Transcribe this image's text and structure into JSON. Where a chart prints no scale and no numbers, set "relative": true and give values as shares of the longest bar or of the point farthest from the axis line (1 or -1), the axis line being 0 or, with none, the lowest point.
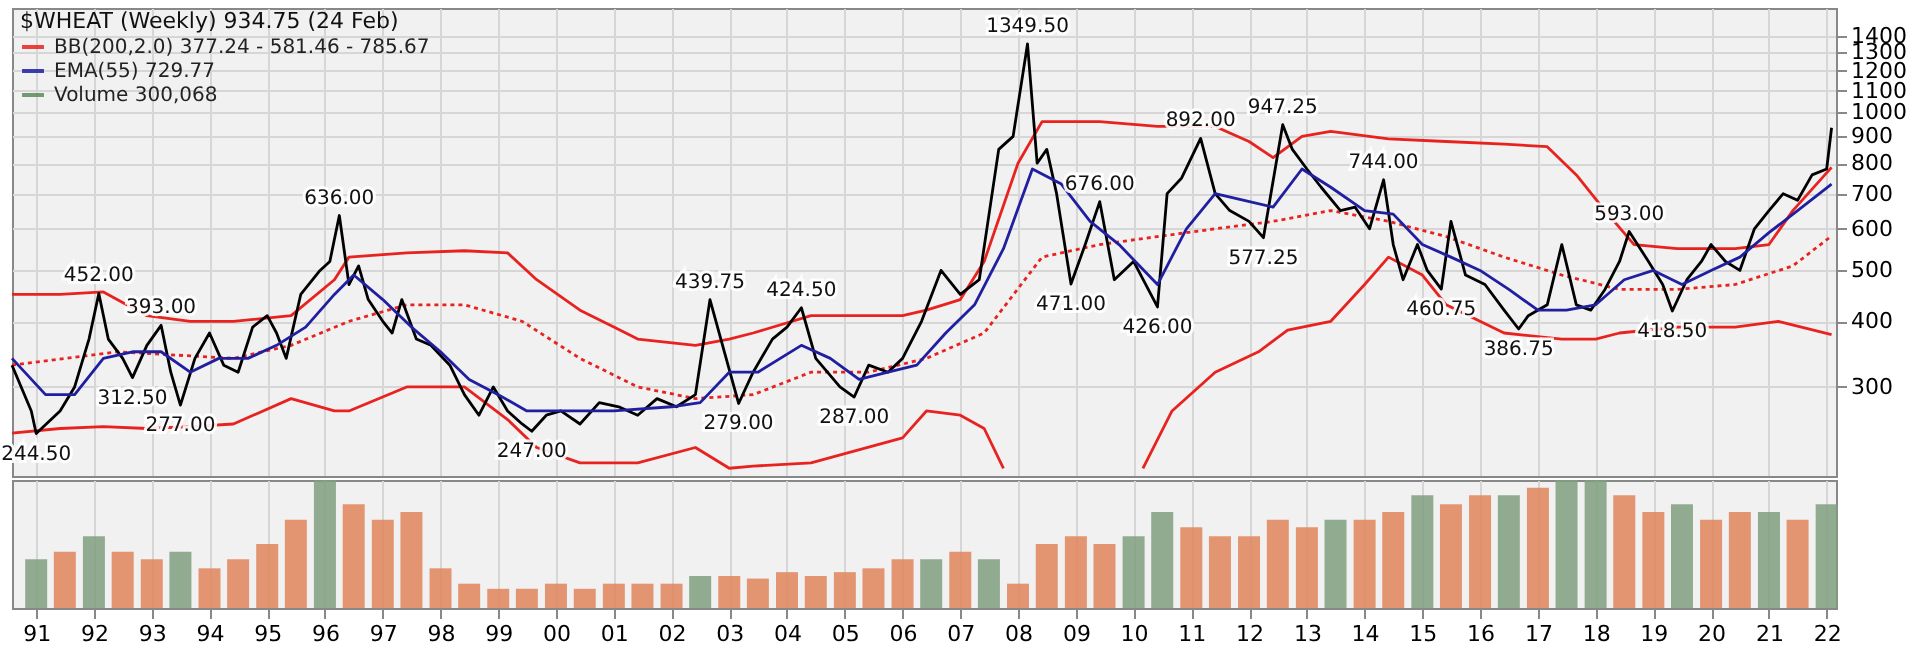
{
  "chart_data": [
    {
      "type": "line",
      "title": "$WHEAT (Weekly) 934.75 (24 Feb)",
      "xlim": [
        "1990-08",
        "2022-03"
      ],
      "ylim": [
        203,
        1580
      ],
      "log": true,
      "grid": true,
      "legend": "top left",
      "tick_labels": "y",
      "xticks": [
        {
          "value": "1991",
          "label": null
        },
        {
          "value": "1992",
          "label": null
        },
        {
          "value": "1993",
          "label": null
        },
        {
          "value": "1994",
          "label": null
        },
        {
          "value": "1995",
          "label": null
        },
        {
          "value": "1996",
          "label": null
        },
        {
          "value": "1997",
          "label": null
        },
        {
          "value": "1998",
          "label": null
        },
        {
          "value": "1999",
          "label": null
        },
        {
          "value": "2000",
          "label": null
        },
        {
          "value": "2001",
          "label": null
        },
        {
          "value": "2002",
          "label": null
        },
        {
          "value": "2003",
          "label": null
        },
        {
          "value": "2004",
          "label": null
        },
        {
          "value": "2005",
          "label": null
        },
        {
          "value": "2006",
          "label": null
        },
        {
          "value": "2007",
          "label": null
        },
        {
          "value": "2008",
          "label": null
        },
        {
          "value": "2009",
          "label": null
        },
        {
          "value": "2010",
          "label": null
        },
        {
          "value": "2011",
          "label": null
        },
        {
          "value": "2012",
          "label": null
        },
        {
          "value": "2013",
          "label": null
        },
        {
          "value": "2014",
          "label": null
        },
        {
          "value": "2015",
          "label": null
        },
        {
          "value": "2016",
          "label": null
        },
        {
          "value": "2017",
          "label": null
        },
        {
          "value": "2018",
          "label": null
        },
        {
          "value": "2019",
          "label": null
        },
        {
          "value": "2020",
          "label": null
        },
        {
          "value": "2021",
          "label": null
        },
        {
          "value": "2022",
          "label": null
        }
      ],
      "yticks": [
        300,
        400,
        500,
        600,
        700,
        800,
        900,
        1000,
        1100,
        1200,
        1300,
        1400
      ],
      "series": [
        {
          "type": "line",
          "color": "#e8231f",
          "line_style": "solid",
          "x": [
            "1990-08",
            "1991-06",
            "1992-03",
            "1992-12",
            "1993-09",
            "1994-06",
            "1995-06",
            "1996-03",
            "1996-06",
            "1997-06",
            "1998-06",
            "1999-03",
            "1999-09",
            "2000-06",
            "2001-01",
            "2001-06",
            "2002-06",
            "2003-01",
            "2003-06",
            "2004-06",
            "2006-01",
            "2006-06",
            "2007-01",
            "2007-06",
            "2007-10"
          ],
          "values": [
            245,
            250,
            252,
            250,
            252,
            255,
            285,
            270,
            270,
            300,
            300,
            260,
            230,
            215,
            215,
            215,
            230,
            210,
            212,
            215,
            240,
            270,
            265,
            250,
            210
          ]
        },
        {
          "type": "line",
          "color": "#e8231f",
          "line_style": "solid",
          "x": [
            "2010-03",
            "2010-09",
            "2011-06",
            "2012-03",
            "2012-09",
            "2013-06",
            "2014-01",
            "2014-06",
            "2015-01",
            "2015-06",
            "2016-06",
            "2017-06",
            "2018-01",
            "2018-06",
            "2019-06",
            "2020-06",
            "2021-03",
            "2022-02"
          ],
          "values": [
            210,
            270,
            320,
            350,
            385,
            400,
            470,
            530,
            490,
            430,
            380,
            370,
            370,
            380,
            390,
            390,
            400,
            377.24
          ]
        },
        {
          "type": "line",
          "color": "#e8231f",
          "line_style": "dotted",
          "x": [
            "1990-08",
            "1992-06",
            "1994-06",
            "1995-06",
            "1996-06",
            "1997-06",
            "1998-06",
            "1999-06",
            "2000-06",
            "2001-06",
            "2002-06",
            "2003-06",
            "2004-06",
            "2005-06",
            "2006-06",
            "2007-06",
            "2008-06",
            "2009-06",
            "2010-06",
            "2011-06",
            "2012-06",
            "2013-06",
            "2014-06",
            "2015-06",
            "2016-06",
            "2017-06",
            "2018-06",
            "2019-06",
            "2020-06",
            "2021-06",
            "2022-02"
          ],
          "values": [
            330,
            350,
            340,
            360,
            400,
            430,
            430,
            400,
            340,
            300,
            285,
            290,
            320,
            320,
            340,
            380,
            530,
            560,
            580,
            600,
            620,
            650,
            620,
            580,
            530,
            490,
            460,
            460,
            470,
            510,
            581.46
          ]
        },
        {
          "name": "BB(200,2.0) 377.24 - 581.46 - 785.67",
          "type": "line",
          "color": "#e8231f",
          "line_style": "solid",
          "x": [
            "1990-08",
            "1991-06",
            "1992-03",
            "1992-12",
            "1993-09",
            "1994-06",
            "1995-06",
            "1996-03",
            "1996-06",
            "1997-06",
            "1998-06",
            "1999-03",
            "1999-09",
            "2000-06",
            "2001-01",
            "2001-06",
            "2002-06",
            "2003-01",
            "2003-06",
            "2004-06",
            "2006-01",
            "2006-06",
            "2007-01",
            "2007-06",
            "2008-01",
            "2008-06",
            "2009-06",
            "2010-06",
            "2011-06",
            "2012-01",
            "2012-06",
            "2012-12",
            "2013-06",
            "2014-06",
            "2015-06",
            "2016-06",
            "2017-03",
            "2017-09",
            "2018-03",
            "2018-09",
            "2019-06",
            "2020-06",
            "2021-01",
            "2021-06",
            "2022-02"
          ],
          "values": [
            450,
            450,
            455,
            410,
            400,
            400,
            410,
            480,
            530,
            540,
            545,
            540,
            480,
            420,
            390,
            370,
            360,
            370,
            380,
            410,
            410,
            420,
            440,
            520,
            800,
            960,
            960,
            940,
            940,
            880,
            820,
            900,
            920,
            890,
            880,
            870,
            860,
            760,
            650,
            560,
            550,
            550,
            560,
            650,
            785.67
          ]
        },
        {
          "type": "line",
          "color": "#000000",
          "line_style": "solid",
          "x": [
            "1990-08",
            "1990-12",
            "1991-01",
            "1991-06",
            "1991-09",
            "1991-12",
            "1992-02",
            "1992-04",
            "1992-07",
            "1992-09",
            "1992-12",
            "1993-03",
            "1993-05",
            "1993-07",
            "1993-10",
            "1994-01",
            "1994-04",
            "1994-07",
            "1994-10",
            "1995-01",
            "1995-03",
            "1995-05",
            "1995-08",
            "1995-12",
            "1996-02",
            "1996-04",
            "1996-06",
            "1996-08",
            "1996-10",
            "1997-01",
            "1997-03",
            "1997-05",
            "1997-08",
            "1997-11",
            "1998-03",
            "1998-06",
            "1998-09",
            "1998-12",
            "1999-03",
            "1999-06",
            "1999-08",
            "1999-11",
            "2000-02",
            "2000-06",
            "2000-10",
            "2001-02",
            "2001-06",
            "2001-10",
            "2002-02",
            "2002-06",
            "2002-09",
            "2002-12",
            "2003-03",
            "2003-06",
            "2003-10",
            "2004-01",
            "2004-04",
            "2004-07",
            "2004-12",
            "2005-03",
            "2005-06",
            "2005-10",
            "2006-01",
            "2006-05",
            "2006-09",
            "2007-01",
            "2007-05",
            "2007-09",
            "2007-12",
            "2008-03",
            "2008-05",
            "2008-07",
            "2008-09",
            "2008-12",
            "2009-03",
            "2009-06",
            "2009-09",
            "2010-01",
            "2010-06",
            "2010-08",
            "2010-11",
            "2011-03",
            "2011-06",
            "2011-09",
            "2012-01",
            "2012-04",
            "2012-08",
            "2012-10",
            "2013-01",
            "2013-04",
            "2013-08",
            "2013-11",
            "2014-02",
            "2014-05",
            "2014-07",
            "2014-09",
            "2014-12",
            "2015-02",
            "2015-05",
            "2015-07",
            "2015-10",
            "2016-02",
            "2016-06",
            "2016-09",
            "2016-11",
            "2017-03",
            "2017-06",
            "2017-09",
            "2017-12",
            "2018-03",
            "2018-06",
            "2018-08",
            "2018-12",
            "2019-03",
            "2019-05",
            "2019-08",
            "2019-11",
            "2020-01",
            "2020-04",
            "2020-07",
            "2020-10",
            "2021-01",
            "2021-04",
            "2021-07",
            "2021-10",
            "2022-01",
            "2022-02"
          ],
          "values": [
            330,
            270,
            244.5,
            270,
            300,
            370,
            452,
            370,
            340,
            312.5,
            360,
            393,
            320,
            277,
            340,
            380,
            330,
            320,
            390,
            410,
            380,
            340,
            450,
            500,
            520,
            636,
            470,
            510,
            440,
            400,
            380,
            440,
            370,
            360,
            330,
            290,
            265,
            300,
            270,
            255,
            247,
            265,
            270,
            255,
            280,
            275,
            265,
            285,
            275,
            290,
            439.75,
            350,
            279,
            320,
            370,
            390,
            424.5,
            340,
            300,
            287,
            330,
            320,
            340,
            400,
            500,
            450,
            480,
            850,
            900,
            1349.5,
            800,
            850,
            700,
            471,
            560,
            676,
            480,
            520,
            426,
            700,
            750,
            892,
            700,
            650,
            620,
            577.25,
            947.25,
            850,
            780,
            720,
            650,
            660,
            600,
            744,
            560,
            480,
            560,
            500,
            460.75,
            620,
            490,
            470,
            420,
            386.75,
            410,
            430,
            560,
            430,
            420,
            460,
            520,
            593,
            520,
            470,
            418.5,
            480,
            520,
            560,
            520,
            500,
            600,
            650,
            700,
            680,
            760,
            780,
            934.75
          ]
        },
        {
          "name": "EMA(55) 729.77",
          "type": "line",
          "color": "#1f1fa0",
          "line_style": "solid",
          "x": [
            "1990-08",
            "1991-03",
            "1991-09",
            "1992-03",
            "1992-09",
            "1993-03",
            "1993-09",
            "1994-03",
            "1994-09",
            "1995-03",
            "1995-09",
            "1996-03",
            "1996-07",
            "1997-01",
            "1997-07",
            "1998-01",
            "1998-07",
            "1999-01",
            "1999-07",
            "2000-01",
            "2001-01",
            "2002-01",
            "2002-07",
            "2003-01",
            "2003-07",
            "2004-04",
            "2004-10",
            "2005-04",
            "2005-10",
            "2006-04",
            "2006-10",
            "2007-04",
            "2007-10",
            "2008-04",
            "2008-10",
            "2009-04",
            "2009-10",
            "2010-06",
            "2010-12",
            "2011-06",
            "2011-12",
            "2012-06",
            "2012-12",
            "2013-06",
            "2014-01",
            "2014-07",
            "2015-01",
            "2015-07",
            "2016-01",
            "2016-07",
            "2017-01",
            "2017-07",
            "2018-01",
            "2018-07",
            "2019-01",
            "2019-07",
            "2020-01",
            "2020-07",
            "2021-01",
            "2021-07",
            "2022-02"
          ],
          "values": [
            340,
            290,
            290,
            340,
            350,
            350,
            320,
            340,
            340,
            360,
            390,
            450,
            490,
            440,
            390,
            350,
            310,
            290,
            270,
            270,
            270,
            275,
            280,
            320,
            320,
            360,
            340,
            310,
            320,
            330,
            380,
            430,
            550,
            780,
            730,
            620,
            560,
            470,
            600,
            700,
            680,
            660,
            780,
            720,
            650,
            640,
            560,
            530,
            500,
            460,
            420,
            420,
            430,
            480,
            500,
            470,
            500,
            530,
            590,
            650,
            729.77
          ]
        }
      ],
      "annotations": [
        {
          "text": "244.50",
          "x": "1991-01",
          "y": 244.5
        },
        {
          "text": "452.00",
          "x": "1992-02",
          "y": 452
        },
        {
          "text": "393.00",
          "x": "1993-03",
          "y": 393
        },
        {
          "text": "312.50",
          "x": "1992-09",
          "y": 312.5
        },
        {
          "text": "277.00",
          "x": "1993-07",
          "y": 277
        },
        {
          "text": "636.00",
          "x": "1996-04",
          "y": 636
        },
        {
          "text": "247.00",
          "x": "1999-08",
          "y": 247
        },
        {
          "text": "439.75",
          "x": "2002-09",
          "y": 439.75
        },
        {
          "text": "424.50",
          "x": "2004-04",
          "y": 424.5
        },
        {
          "text": "279.00",
          "x": "2003-03",
          "y": 279
        },
        {
          "text": "287.00",
          "x": "2005-03",
          "y": 287
        },
        {
          "text": "1349.50",
          "x": "2008-03",
          "y": 1349.5
        },
        {
          "text": "676.00",
          "x": "2009-06",
          "y": 676
        },
        {
          "text": "471.00",
          "x": "2008-12",
          "y": 471
        },
        {
          "text": "426.00",
          "x": "2010-06",
          "y": 426
        },
        {
          "text": "892.00",
          "x": "2011-03",
          "y": 892
        },
        {
          "text": "577.25",
          "x": "2012-04",
          "y": 577.25
        },
        {
          "text": "947.25",
          "x": "2012-08",
          "y": 947.25
        },
        {
          "text": "744.00",
          "x": "2014-05",
          "y": 744
        },
        {
          "text": "460.75",
          "x": "2015-05",
          "y": 460.75
        },
        {
          "text": "386.75",
          "x": "2016-09",
          "y": 386.75
        },
        {
          "text": "593.00",
          "x": "2018-08",
          "y": 593
        },
        {
          "text": "418.50",
          "x": "2019-05",
          "y": 418.5
        }
      ]
    },
    {
      "type": "bar",
      "relative": true,
      "xlim": [
        "1990-08",
        "2022-03"
      ],
      "grid": "x",
      "xticks": [
        {
          "value": "1991",
          "label": "91"
        },
        {
          "value": "1992",
          "label": "92"
        },
        {
          "value": "1993",
          "label": "93"
        },
        {
          "value": "1994",
          "label": "94"
        },
        {
          "value": "1995",
          "label": "95"
        },
        {
          "value": "1996",
          "label": "96"
        },
        {
          "value": "1997",
          "label": "97"
        },
        {
          "value": "1998",
          "label": "98"
        },
        {
          "value": "1999",
          "label": "99"
        },
        {
          "value": "2000",
          "label": "00"
        },
        {
          "value": "2001",
          "label": "01"
        },
        {
          "value": "2002",
          "label": "02"
        },
        {
          "value": "2003",
          "label": "03"
        },
        {
          "value": "2004",
          "label": "04"
        },
        {
          "value": "2005",
          "label": "05"
        },
        {
          "value": "2006",
          "label": "06"
        },
        {
          "value": "2007",
          "label": "07"
        },
        {
          "value": "2008",
          "label": "08"
        },
        {
          "value": "2009",
          "label": "09"
        },
        {
          "value": "2010",
          "label": "10"
        },
        {
          "value": "2011",
          "label": "11"
        },
        {
          "value": "2012",
          "label": "12"
        },
        {
          "value": "2013",
          "label": "13"
        },
        {
          "value": "2014",
          "label": "14"
        },
        {
          "value": "2015",
          "label": "15"
        },
        {
          "value": "2016",
          "label": "16"
        },
        {
          "value": "2017",
          "label": "17"
        },
        {
          "value": "2018",
          "label": "18"
        },
        {
          "value": "2019",
          "label": "19"
        },
        {
          "value": "2020",
          "label": "20"
        },
        {
          "value": "2021",
          "label": "21"
        },
        {
          "value": "2022",
          "label": "22"
        }
      ],
      "x": [
        "1991-01",
        "1991-07",
        "1992-01",
        "1992-07",
        "1993-01",
        "1993-07",
        "1994-01",
        "1994-07",
        "1995-01",
        "1995-07",
        "1996-01",
        "1996-07",
        "1997-01",
        "1997-07",
        "1998-01",
        "1998-07",
        "1999-01",
        "1999-07",
        "2000-01",
        "2000-07",
        "2001-01",
        "2001-07",
        "2002-01",
        "2002-07",
        "2003-01",
        "2003-07",
        "2004-01",
        "2004-07",
        "2005-01",
        "2005-07",
        "2006-01",
        "2006-07",
        "2007-01",
        "2007-07",
        "2008-01",
        "2008-07",
        "2009-01",
        "2009-07",
        "2010-01",
        "2010-07",
        "2011-01",
        "2011-07",
        "2012-01",
        "2012-07",
        "2013-01",
        "2013-07",
        "2014-01",
        "2014-07",
        "2015-01",
        "2015-07",
        "2016-01",
        "2016-07",
        "2017-01",
        "2017-07",
        "2018-01",
        "2018-07",
        "2019-01",
        "2019-07",
        "2020-01",
        "2020-07",
        "2021-01",
        "2021-07",
        "2022-01"
      ],
      "series": [
        {
          "name": "Volume 300,068",
          "color": "#5e8a5e",
          "values": [
            0.38,
            0.44,
            0.56,
            0.44,
            0.38,
            0.44,
            0.31,
            0.38,
            0.5,
            0.69,
            1.0,
            0.81,
            0.69,
            0.75,
            0.31,
            0.19,
            0.15,
            0.15,
            0.19,
            0.15,
            0.19,
            0.19,
            0.19,
            0.25,
            0.25,
            0.23,
            0.28,
            0.25,
            0.28,
            0.31,
            0.38,
            0.38,
            0.44,
            0.38,
            0.19,
            0.5,
            0.56,
            0.5,
            0.56,
            0.75,
            0.63,
            0.56,
            0.56,
            0.69,
            0.63,
            0.69,
            0.69,
            0.75,
            0.88,
            0.81,
            0.88,
            0.88,
            0.94,
            1.0,
            1.0,
            0.88,
            0.75,
            0.81,
            0.69,
            0.75,
            0.75,
            0.69,
            0.81
          ],
          "colors": [
            "#7f9f7f",
            "#e0855c",
            "#7f9f7f",
            "#e0855c",
            "#e0855c",
            "#7f9f7f",
            "#e0855c",
            "#e0855c",
            "#e0855c",
            "#e0855c",
            "#7f9f7f",
            "#e0855c",
            "#e0855c",
            "#e0855c",
            "#e0855c",
            "#e0855c",
            "#e0855c",
            "#e0855c",
            "#e0855c",
            "#e0855c",
            "#e0855c",
            "#e0855c",
            "#e0855c",
            "#7f9f7f",
            "#e0855c",
            "#e0855c",
            "#e0855c",
            "#e0855c",
            "#e0855c",
            "#e0855c",
            "#e0855c",
            "#7f9f7f",
            "#e0855c",
            "#7f9f7f",
            "#e0855c",
            "#e0855c",
            "#e0855c",
            "#e0855c",
            "#7f9f7f",
            "#7f9f7f",
            "#e0855c",
            "#e0855c",
            "#e0855c",
            "#e0855c",
            "#e0855c",
            "#7f9f7f",
            "#e0855c",
            "#e0855c",
            "#7f9f7f",
            "#e0855c",
            "#e0855c",
            "#7f9f7f",
            "#e0855c",
            "#7f9f7f",
            "#7f9f7f",
            "#e0855c",
            "#e0855c",
            "#7f9f7f",
            "#e0855c",
            "#e0855c",
            "#7f9f7f",
            "#e0855c",
            "#7f9f7f"
          ]
        }
      ]
    }
  ]
}
